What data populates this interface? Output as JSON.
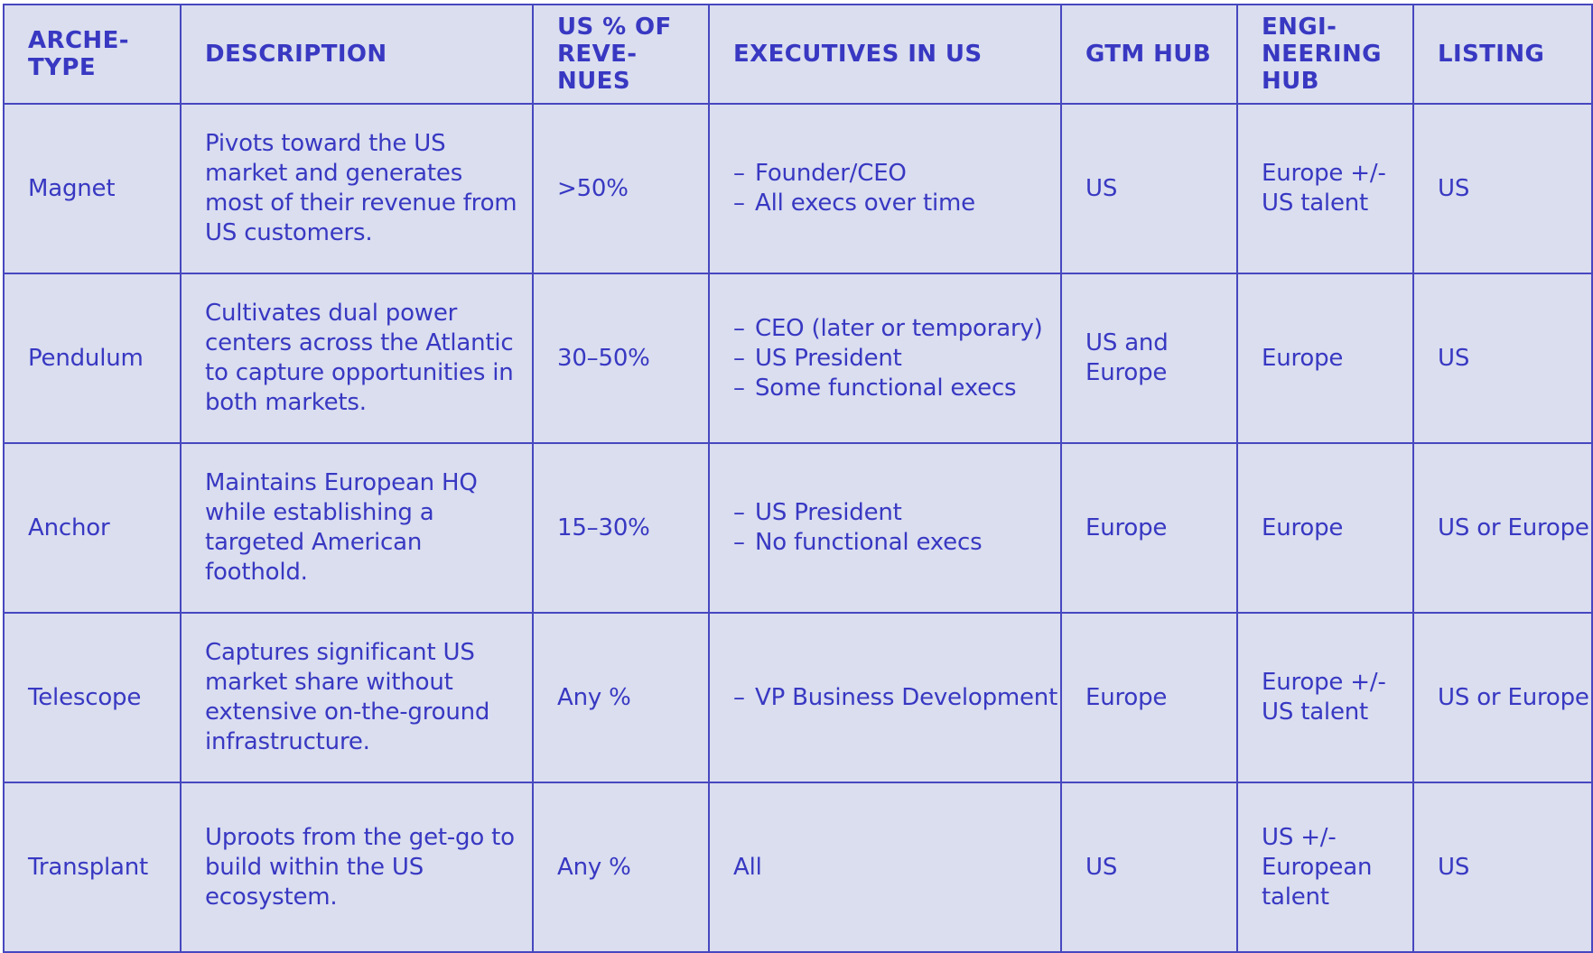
{
  "colors": {
    "cell_background": "#dadeef",
    "text": "#3838c2",
    "border": "#4747bf"
  },
  "table": {
    "headers": [
      "ARCHE-\nTYPE",
      "DESCRIPTION",
      "US % OF\nREVE-\nNUES",
      "EXECUTIVES IN US",
      "GTM HUB",
      "ENGI-\nNEERING\nHUB",
      "LISTING"
    ],
    "rows": [
      {
        "archetype": "Magnet",
        "description": "Pivots toward the US market and generates most of their revenue from US customers.",
        "us_revenue_share": ">50%",
        "executives": [
          "Founder/CEO",
          "All execs over time"
        ],
        "gtm_hub": "US",
        "engineering_hub": "Europe +/- US talent",
        "listing": "US"
      },
      {
        "archetype": "Pendulum",
        "description": "Cultivates dual power centers across the Atlantic to capture opportunities in both markets.",
        "us_revenue_share": "30–50%",
        "executives": [
          "CEO (later or temporary)",
          "US President",
          "Some functional execs"
        ],
        "gtm_hub": "US and Europe",
        "engineering_hub": "Europe",
        "listing": "US"
      },
      {
        "archetype": "Anchor",
        "description": "Maintains European HQ while establishing a targeted American foothold.",
        "us_revenue_share": "15–30%",
        "executives": [
          "US President",
          "No functional execs"
        ],
        "gtm_hub": "Europe",
        "engineering_hub": "Europe",
        "listing": "US or Europe"
      },
      {
        "archetype": "Telescope",
        "description": "Captures significant US market share without extensive on-the-ground infrastructure.",
        "us_revenue_share": "Any %",
        "executives": [
          "VP Business Development"
        ],
        "gtm_hub": "Europe",
        "engineering_hub": "Europe +/- US talent",
        "listing": "US or Europe"
      },
      {
        "archetype": "Transplant",
        "description": "Uproots from the get-go to build within the US ecosystem.",
        "us_revenue_share": "Any %",
        "executives_text": "All",
        "gtm_hub": "US",
        "engineering_hub": "US +/- European talent",
        "listing": "US"
      }
    ]
  }
}
